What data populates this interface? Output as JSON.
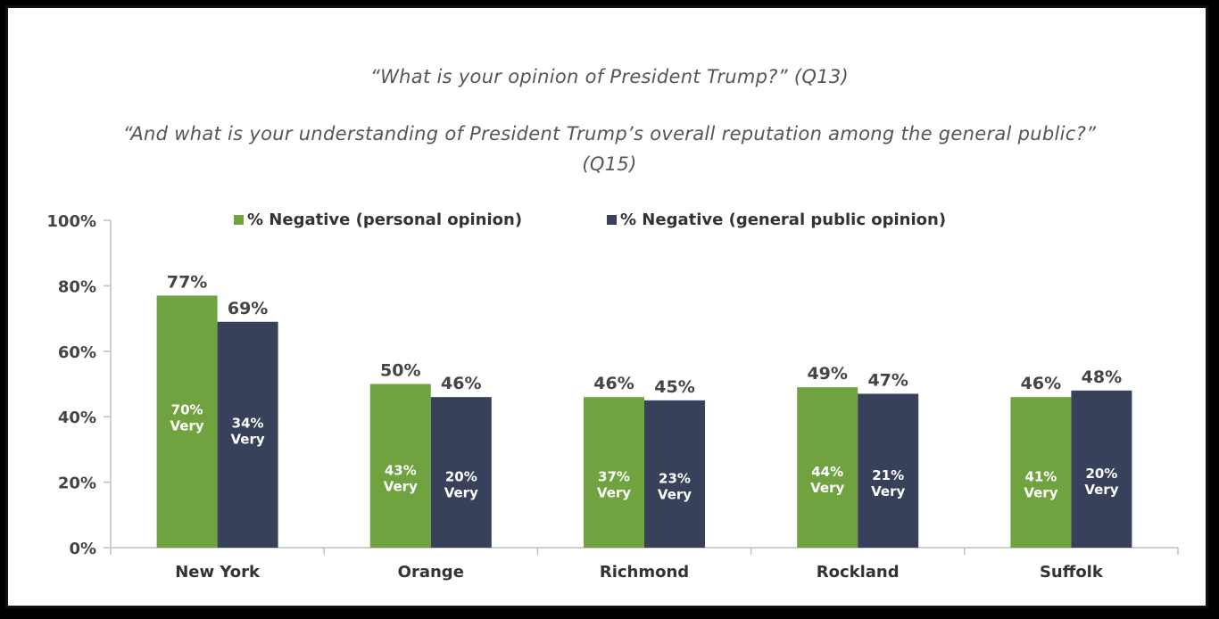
{
  "chart_data": {
    "type": "bar",
    "title": "“What is your opinion of President Trump?” (Q13)",
    "subtitle_line1": "“And what is your understanding of President Trump’s overall reputation among the general public?”",
    "subtitle_line2": "(Q15)",
    "categories": [
      "New York",
      "Orange",
      "Richmond",
      "Rockland",
      "Suffolk"
    ],
    "series": [
      {
        "name": "% Negative (personal opinion)",
        "color": "#70a340",
        "values": [
          77,
          50,
          46,
          49,
          46
        ],
        "labels": [
          "77%",
          "50%",
          "46%",
          "49%",
          "46%"
        ],
        "inner_labels": [
          "70%",
          "43%",
          "37%",
          "44%",
          "41%"
        ]
      },
      {
        "name": "% Negative (general public opinion)",
        "color": "#37415a",
        "values": [
          69,
          46,
          45,
          47,
          48
        ],
        "labels": [
          "69%",
          "46%",
          "45%",
          "47%",
          "48%"
        ],
        "inner_labels": [
          "34%",
          "20%",
          "23%",
          "21%",
          "20%"
        ]
      }
    ],
    "inner_label_suffix": "Very",
    "yticks": [
      "0%",
      "20%",
      "40%",
      "60%",
      "80%",
      "100%"
    ],
    "ylim": [
      0,
      100
    ],
    "grid": false,
    "legend_position": "top"
  }
}
